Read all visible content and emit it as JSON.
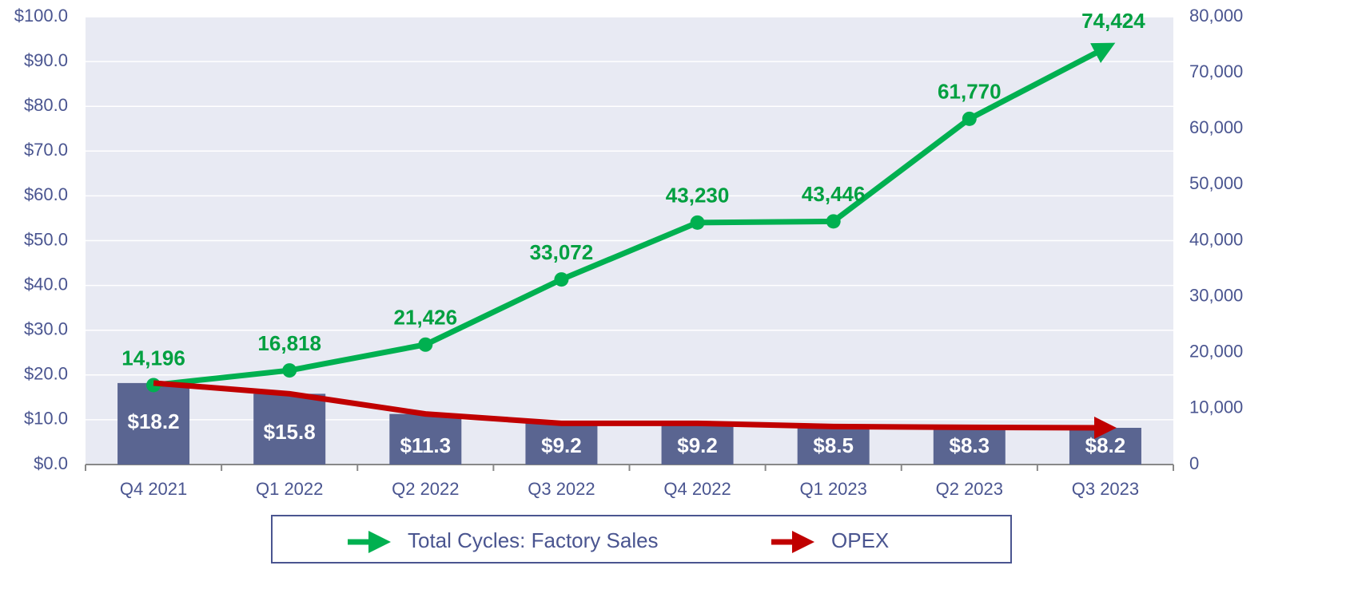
{
  "chart_data": {
    "type": "combo",
    "categories": [
      "Q4 2021",
      "Q1 2022",
      "Q2 2022",
      "Q3 2022",
      "Q4 2022",
      "Q1 2023",
      "Q2 2023",
      "Q3 2023"
    ],
    "series": [
      {
        "name": "Total Cycles: Factory Sales",
        "color": "#00b050",
        "label_color": "#00a040",
        "axis": "y2",
        "values": [
          14196,
          16818,
          21426,
          33072,
          43230,
          43446,
          61770,
          74424
        ],
        "value_labels": [
          "14,196",
          "16,818",
          "21,426",
          "33,072",
          "43,230",
          "43,446",
          "61,770",
          "74,424"
        ]
      },
      {
        "name": "OPEX",
        "color": "#c00000",
        "bar_color": "#5a6591",
        "values": [
          18.2,
          15.8,
          11.3,
          9.2,
          9.2,
          8.5,
          8.3,
          8.2
        ],
        "value_labels": [
          "$18.2",
          "$15.8",
          "$11.3",
          "$9.2",
          "$9.2",
          "$8.5",
          "$8.3",
          "$8.2"
        ]
      }
    ],
    "ylim": [
      0,
      100
    ],
    "yticks": [
      {
        "value": 0,
        "label": "$0.0"
      },
      {
        "value": 10,
        "label": "$10.0"
      },
      {
        "value": 20,
        "label": "$20.0"
      },
      {
        "value": 30,
        "label": "$30.0"
      },
      {
        "value": 40,
        "label": "$40.0"
      },
      {
        "value": 50,
        "label": "$50.0"
      },
      {
        "value": 60,
        "label": "$60.0"
      },
      {
        "value": 70,
        "label": "$70.0"
      },
      {
        "value": 80,
        "label": "$80.0"
      },
      {
        "value": 90,
        "label": "$90.0"
      },
      {
        "value": 100,
        "label": "$100.0"
      }
    ],
    "y2lim": [
      0,
      80000
    ],
    "y2ticks": [
      0,
      {
        "value": 10000,
        "label": "10,000"
      },
      {
        "value": 20000,
        "label": "20,000"
      },
      {
        "value": 30000,
        "label": "30,000"
      },
      {
        "value": 40000,
        "label": "40,000"
      },
      {
        "value": 50000,
        "label": "50,000"
      },
      {
        "value": 60000,
        "label": "60,000"
      },
      {
        "value": 70000,
        "label": "70,000"
      },
      {
        "value": 80000,
        "label": "80,000"
      }
    ],
    "grid": true
  }
}
